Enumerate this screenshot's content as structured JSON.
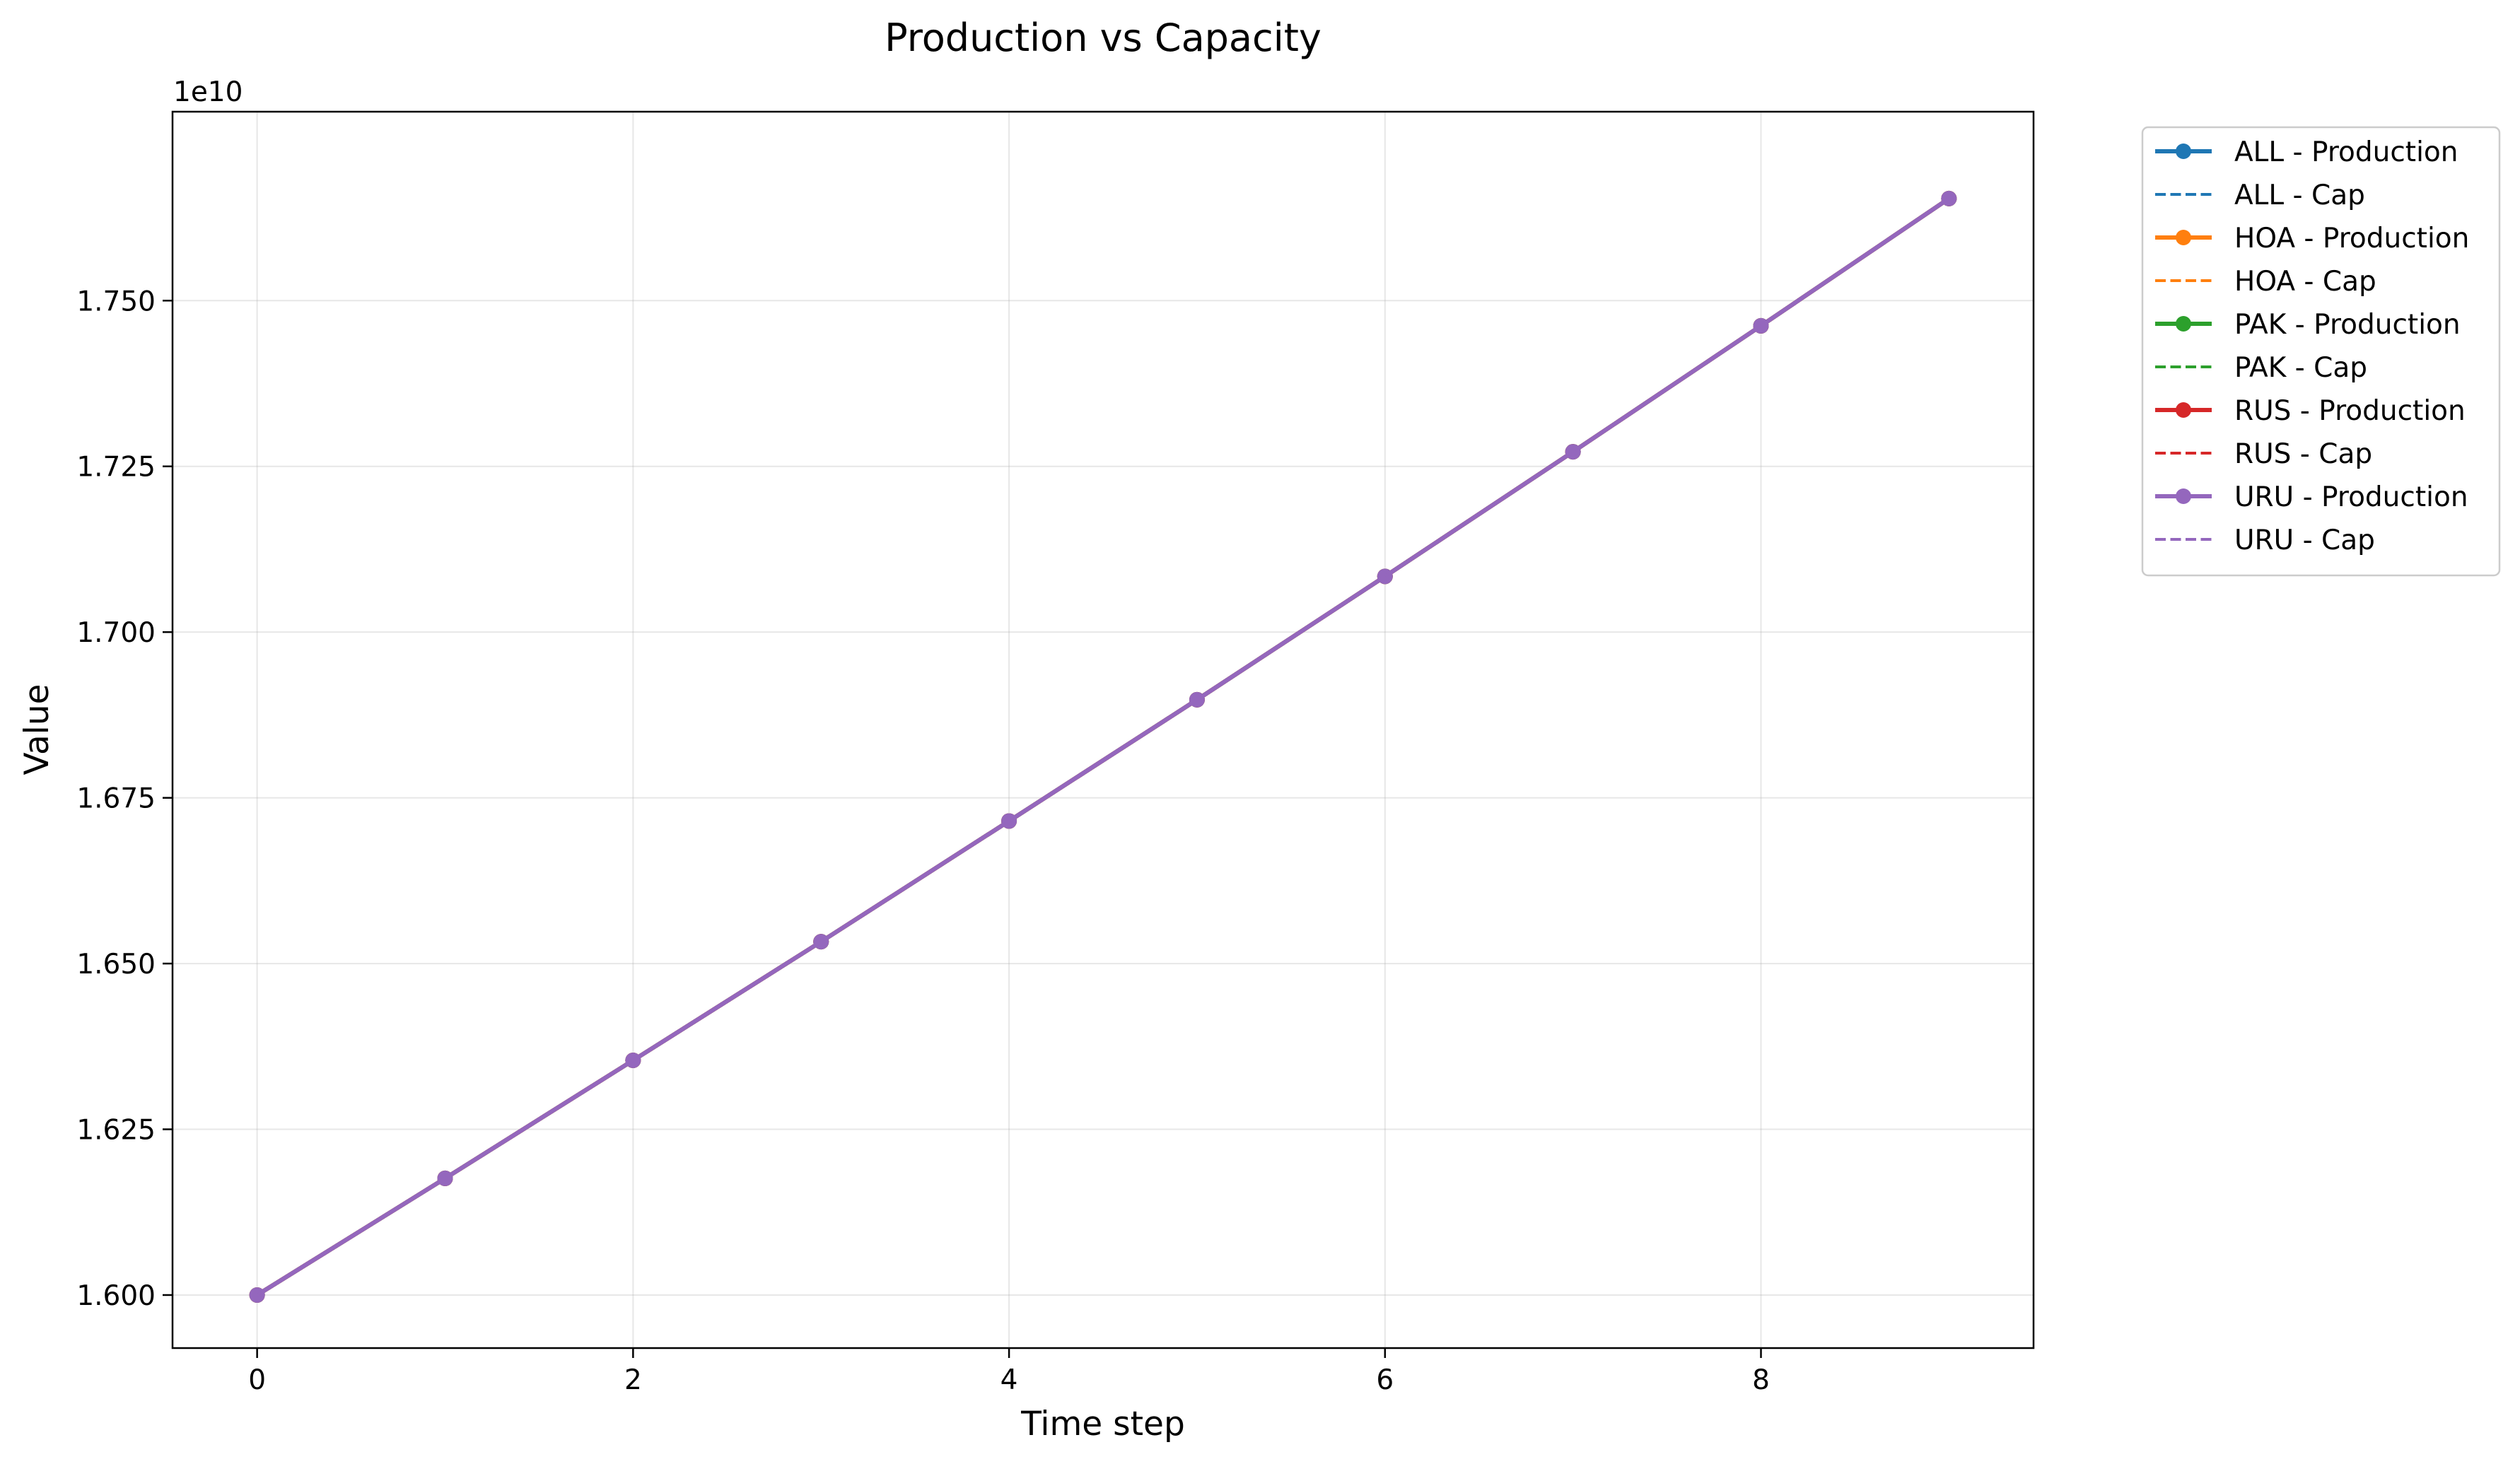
{
  "chart_data": {
    "type": "line",
    "title": "Production vs Capacity",
    "xlabel": "Time step",
    "ylabel": "Value",
    "y_offset_text": "1e10",
    "x": [
      0,
      1,
      2,
      3,
      4,
      5,
      6,
      7,
      8,
      9
    ],
    "xlim": [
      -0.45,
      9.45
    ],
    "ylim": [
      1.592,
      1.7785
    ],
    "x_ticks": [
      0,
      2,
      4,
      6,
      8
    ],
    "x_tick_labels": [
      "0",
      "2",
      "4",
      "6",
      "8"
    ],
    "y_ticks": [
      1.6,
      1.625,
      1.65,
      1.675,
      1.7,
      1.725,
      1.75
    ],
    "y_tick_labels": [
      "1.600",
      "1.625",
      "1.650",
      "1.675",
      "1.700",
      "1.725",
      "1.750"
    ],
    "grid": true,
    "legend_position": "outside-upper-right",
    "series": [
      {
        "name": "ALL - Production",
        "color": "#1f77b4",
        "style": "solid-marker",
        "values": [
          1.6,
          1.6176,
          1.6354,
          1.6533,
          1.6715,
          1.6898,
          1.7084,
          1.7272,
          1.7462,
          1.7654
        ]
      },
      {
        "name": "ALL - Cap",
        "color": "#1f77b4",
        "style": "dashed",
        "values": [
          1.6,
          1.6176,
          1.6354,
          1.6533,
          1.6715,
          1.6898,
          1.7084,
          1.7272,
          1.7462,
          1.7654
        ]
      },
      {
        "name": "HOA - Production",
        "color": "#ff7f0e",
        "style": "solid-marker",
        "values": [
          1.6,
          1.6176,
          1.6354,
          1.6533,
          1.6715,
          1.6898,
          1.7084,
          1.7272,
          1.7462,
          1.7654
        ]
      },
      {
        "name": "HOA - Cap",
        "color": "#ff7f0e",
        "style": "dashed",
        "values": [
          1.6,
          1.6176,
          1.6354,
          1.6533,
          1.6715,
          1.6898,
          1.7084,
          1.7272,
          1.7462,
          1.7654
        ]
      },
      {
        "name": "PAK - Production",
        "color": "#2ca02c",
        "style": "solid-marker",
        "values": [
          1.6,
          1.6176,
          1.6354,
          1.6533,
          1.6715,
          1.6898,
          1.7084,
          1.7272,
          1.7462,
          1.7654
        ]
      },
      {
        "name": "PAK - Cap",
        "color": "#2ca02c",
        "style": "dashed",
        "values": [
          1.6,
          1.6176,
          1.6354,
          1.6533,
          1.6715,
          1.6898,
          1.7084,
          1.7272,
          1.7462,
          1.7654
        ]
      },
      {
        "name": "RUS - Production",
        "color": "#d62728",
        "style": "solid-marker",
        "values": [
          1.6,
          1.6176,
          1.6354,
          1.6533,
          1.6715,
          1.6898,
          1.7084,
          1.7272,
          1.7462,
          1.7654
        ]
      },
      {
        "name": "RUS - Cap",
        "color": "#d62728",
        "style": "dashed",
        "values": [
          1.6,
          1.6176,
          1.6354,
          1.6533,
          1.6715,
          1.6898,
          1.7084,
          1.7272,
          1.7462,
          1.7654
        ]
      },
      {
        "name": "URU - Production",
        "color": "#9467bd",
        "style": "solid-marker",
        "values": [
          1.6,
          1.6176,
          1.6354,
          1.6533,
          1.6715,
          1.6898,
          1.7084,
          1.7272,
          1.7462,
          1.7654
        ]
      },
      {
        "name": "URU - Cap",
        "color": "#9467bd",
        "style": "dashed",
        "values": [
          1.6,
          1.6176,
          1.6354,
          1.6533,
          1.6715,
          1.6898,
          1.7084,
          1.7272,
          1.7462,
          1.7654
        ]
      }
    ]
  }
}
